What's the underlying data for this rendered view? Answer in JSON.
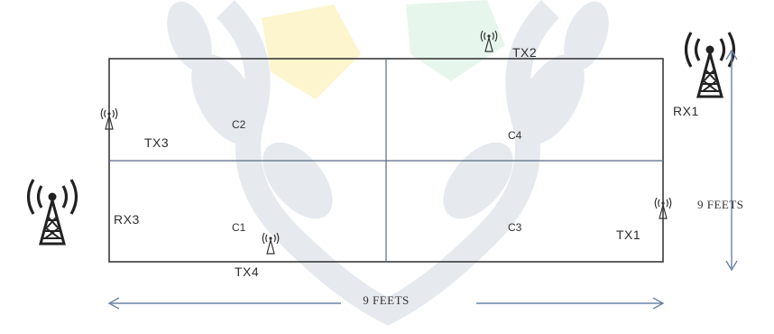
{
  "colors": {
    "wall": "#3a3a3a",
    "divider": "#5a6a80",
    "arrow": "#6a84a8",
    "antenna": "#222222",
    "watermark_grey": "#e4e8ee",
    "watermark_yellow": "#fdf5c8",
    "watermark_green": "#e4f6ea"
  },
  "nodes": {
    "tx1": "TX1",
    "tx2": "TX2",
    "tx3": "TX3",
    "tx4": "TX4",
    "rx1": "RX1",
    "rx3": "RX3"
  },
  "cells": {
    "c1": "C1",
    "c2": "C2",
    "c3": "C3",
    "c4": "C4"
  },
  "dimensions": {
    "width_label": "9 FEETS",
    "height_label": "9 FEETS"
  }
}
